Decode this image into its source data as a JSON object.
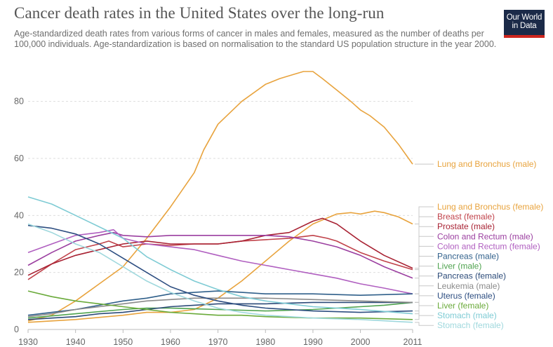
{
  "title": "Cancer death rates in the United States over the long-run",
  "subtitle": "Age-standardized death rates from various forms of cancer in males and females, measured as the number of deaths per 100,000 individuals. Age-standardization is based on normalisation to the standard US population structure in the year 2000.",
  "logo": {
    "line1": "Our World",
    "line2": "in Data"
  },
  "chart_data": {
    "type": "line",
    "title": "Cancer death rates in the United States over the long-run",
    "xlim": [
      1930,
      2011
    ],
    "ylim": [
      0,
      90
    ],
    "xticks": [
      1930,
      1940,
      1950,
      1960,
      1970,
      1980,
      1990,
      2000,
      2011
    ],
    "yticks": [
      0,
      20,
      40,
      60,
      80
    ],
    "grid": true,
    "legend": "right, labels at line ends",
    "series": [
      {
        "name": "Lung and Bronchus (male)",
        "color": "#e8a33d",
        "x": [
          1930,
          1935,
          1940,
          1945,
          1950,
          1955,
          1960,
          1965,
          1967,
          1970,
          1975,
          1980,
          1983,
          1986,
          1988,
          1990,
          1992,
          1995,
          1998,
          2000,
          2002,
          2005,
          2008,
          2011
        ],
        "y": [
          3,
          5,
          10,
          16,
          22,
          32,
          43,
          55,
          63,
          72,
          80,
          86,
          88,
          89.5,
          90.5,
          90.5,
          88,
          84,
          80,
          77,
          75,
          71,
          65,
          58
        ]
      },
      {
        "name": "Lung and Bronchus (female)",
        "color": "#e8a33d",
        "x": [
          1930,
          1940,
          1950,
          1955,
          1960,
          1965,
          1970,
          1975,
          1980,
          1985,
          1990,
          1995,
          1998,
          2000,
          2003,
          2005,
          2008,
          2011
        ],
        "y": [
          2.5,
          3.5,
          5,
          6,
          6,
          7,
          11,
          17,
          24,
          31,
          37,
          40.5,
          41,
          40.5,
          41.5,
          41,
          39.5,
          37
        ]
      },
      {
        "name": "Breast (female)",
        "color": "#c0424a",
        "x": [
          1930,
          1935,
          1940,
          1945,
          1947,
          1950,
          1955,
          1960,
          1965,
          1970,
          1975,
          1980,
          1985,
          1990,
          1993,
          1995,
          2000,
          2005,
          2011
        ],
        "y": [
          17.5,
          23,
          28,
          30,
          31,
          29,
          30,
          29.5,
          30,
          30,
          31,
          31.5,
          32,
          33,
          32,
          31,
          27,
          24,
          21
        ]
      },
      {
        "name": "Prostate (male)",
        "color": "#a82233",
        "x": [
          1930,
          1935,
          1940,
          1945,
          1950,
          1955,
          1960,
          1965,
          1970,
          1975,
          1980,
          1985,
          1990,
          1992,
          1995,
          2000,
          2005,
          2011
        ],
        "y": [
          19,
          23,
          26,
          28,
          30,
          31,
          30,
          30,
          30,
          31,
          33,
          34,
          38,
          39,
          37,
          31,
          26,
          21.5
        ]
      },
      {
        "name": "Colon and Rectum (male)",
        "color": "#9b3fa0",
        "x": [
          1930,
          1935,
          1940,
          1945,
          1948,
          1950,
          1955,
          1960,
          1965,
          1970,
          1975,
          1980,
          1985,
          1990,
          1995,
          2000,
          2005,
          2011
        ],
        "y": [
          22.5,
          27,
          31,
          33,
          34,
          33,
          32.5,
          33,
          33,
          33,
          33,
          33,
          32.5,
          31,
          29,
          26,
          22,
          18
        ]
      },
      {
        "name": "Colon and Rectum (female)",
        "color": "#b05fc0",
        "x": [
          1930,
          1935,
          1940,
          1945,
          1948,
          1950,
          1955,
          1960,
          1965,
          1970,
          1975,
          1980,
          1985,
          1990,
          1995,
          2000,
          2005,
          2011
        ],
        "y": [
          27,
          30,
          33,
          34,
          35,
          32,
          30,
          29,
          28,
          26,
          24,
          22.5,
          21,
          19.5,
          18,
          16,
          14.5,
          12.5
        ]
      },
      {
        "name": "Pancreas (male)",
        "color": "#2f5f8a",
        "x": [
          1930,
          1935,
          1940,
          1945,
          1950,
          1955,
          1960,
          1965,
          1970,
          1975,
          1980,
          1990,
          2000,
          2011
        ],
        "y": [
          5,
          6,
          7,
          8.5,
          10,
          11,
          12.5,
          13,
          13.5,
          13,
          12.5,
          12.5,
          12,
          12.5
        ]
      },
      {
        "name": "Liver (male)",
        "color": "#4fa34f",
        "x": [
          1930,
          1940,
          1950,
          1955,
          1960,
          1970,
          1980,
          1990,
          1995,
          2000,
          2005,
          2011
        ],
        "y": [
          4,
          5.5,
          7,
          7.5,
          7.5,
          7,
          6.5,
          7,
          7.5,
          8,
          8.5,
          9.5
        ]
      },
      {
        "name": "Pancreas (female)",
        "color": "#2b4a78",
        "x": [
          1930,
          1935,
          1940,
          1945,
          1950,
          1955,
          1960,
          1965,
          1970,
          1980,
          1990,
          2000,
          2011
        ],
        "y": [
          3.5,
          4,
          4.5,
          5.5,
          6,
          7,
          8,
          8.5,
          9,
          9,
          9.5,
          9.5,
          9.5
        ]
      },
      {
        "name": "Leukemia (male)",
        "color": "#8a8a8a",
        "x": [
          1930,
          1935,
          1940,
          1945,
          1950,
          1955,
          1960,
          1965,
          1970,
          1980,
          1990,
          2000,
          2011
        ],
        "y": [
          4.5,
          5.5,
          7,
          8,
          9,
          10,
          10.5,
          11,
          11,
          11,
          10.5,
          10,
          9.5
        ]
      },
      {
        "name": "Uterus (female)",
        "color": "#2c4d80",
        "x": [
          1930,
          1935,
          1940,
          1945,
          1950,
          1955,
          1960,
          1965,
          1970,
          1975,
          1980,
          1990,
          2000,
          2011
        ],
        "y": [
          36.5,
          35.5,
          33.5,
          30,
          25,
          20,
          15,
          12,
          10,
          8.5,
          7.5,
          6.5,
          6,
          6.5
        ]
      },
      {
        "name": "Liver (female)",
        "color": "#6aaa3a",
        "x": [
          1930,
          1935,
          1940,
          1945,
          1950,
          1955,
          1960,
          1965,
          1970,
          1975,
          1980,
          1990,
          2000,
          2011
        ],
        "y": [
          13.5,
          11.5,
          10,
          9,
          8,
          7,
          6,
          5.5,
          5,
          5,
          4.5,
          4,
          4,
          3.5
        ]
      },
      {
        "name": "Stomach (male)",
        "color": "#7ecbd4",
        "x": [
          1930,
          1935,
          1940,
          1945,
          1950,
          1955,
          1960,
          1965,
          1970,
          1975,
          1980,
          1985,
          1990,
          2000,
          2011
        ],
        "y": [
          46.5,
          44,
          40,
          36,
          32,
          25.5,
          21,
          17,
          14,
          11.5,
          10,
          9,
          8,
          7,
          5.5
        ]
      },
      {
        "name": "Stomach (female)",
        "color": "#9fd8dd",
        "x": [
          1930,
          1935,
          1940,
          1945,
          1950,
          1955,
          1960,
          1965,
          1970,
          1975,
          1980,
          1985,
          1990,
          2000,
          2011
        ],
        "y": [
          37,
          34,
          30,
          27,
          22,
          17,
          13,
          10,
          7.5,
          6,
          5,
          4.5,
          4,
          3.5,
          2.5
        ]
      }
    ]
  }
}
